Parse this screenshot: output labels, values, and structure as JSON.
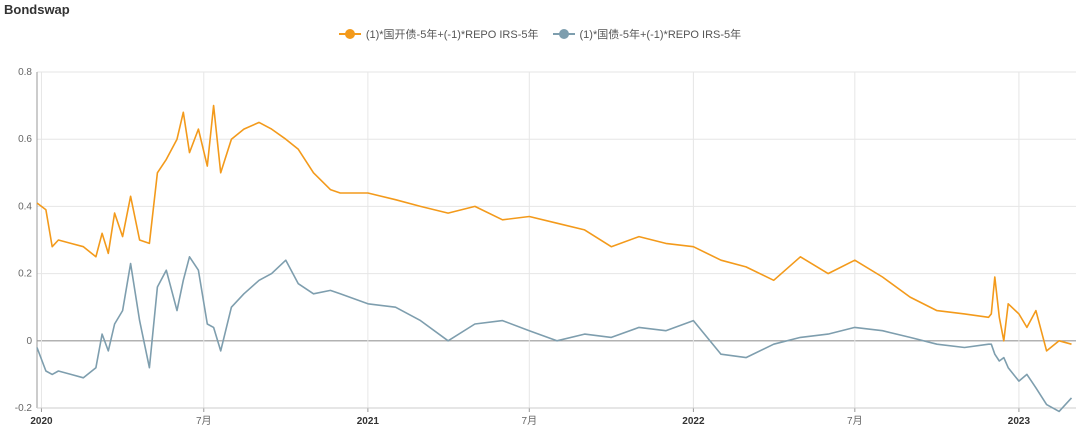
{
  "title": "Bondswap",
  "legend": [
    {
      "label": "(1)*国开债-5年+(-1)*REPO IRS-5年",
      "color": "#f39a1b"
    },
    {
      "label": "(1)*国债-5年+(-1)*REPO IRS-5年",
      "color": "#7e9eae"
    }
  ],
  "chart_data": {
    "type": "line",
    "title": "Bondswap",
    "xlabel": "",
    "ylabel": "",
    "ylim": [
      -0.2,
      0.8
    ],
    "xlim": [
      "2019-12-27",
      "2023-03-06"
    ],
    "grid": true,
    "legend_position": "top-center",
    "yticks": [
      0.8,
      0.6,
      0.4,
      0.2,
      0,
      -0.2
    ],
    "ytick_labels": [
      "0.8",
      "0.6",
      "0.4",
      "0.2",
      "0",
      "-0.2"
    ],
    "xticks": [
      {
        "date": "2020-01-01",
        "label": "2020",
        "major": true
      },
      {
        "date": "2020-07-01",
        "label": "7月",
        "major": false
      },
      {
        "date": "2021-01-01",
        "label": "2021",
        "major": true
      },
      {
        "date": "2021-07-01",
        "label": "7月",
        "major": false
      },
      {
        "date": "2022-01-01",
        "label": "2022",
        "major": true
      },
      {
        "date": "2022-07-01",
        "label": "7月",
        "major": false
      },
      {
        "date": "2023-01-01",
        "label": "2023",
        "major": true
      }
    ],
    "series": [
      {
        "name": "(1)*国开债-5年+(-1)*REPO IRS-5年",
        "color": "#f39a1b",
        "x": [
          "2019-12-27",
          "2020-01-06",
          "2020-01-13",
          "2020-01-20",
          "2020-02-03",
          "2020-02-17",
          "2020-03-02",
          "2020-03-09",
          "2020-03-16",
          "2020-03-23",
          "2020-04-01",
          "2020-04-10",
          "2020-04-20",
          "2020-05-01",
          "2020-05-10",
          "2020-05-20",
          "2020-06-01",
          "2020-06-08",
          "2020-06-15",
          "2020-06-25",
          "2020-07-05",
          "2020-07-12",
          "2020-07-20",
          "2020-08-01",
          "2020-08-15",
          "2020-09-01",
          "2020-09-15",
          "2020-10-01",
          "2020-10-15",
          "2020-11-01",
          "2020-11-20",
          "2020-12-01",
          "2021-01-01",
          "2021-02-01",
          "2021-03-01",
          "2021-04-01",
          "2021-05-01",
          "2021-06-01",
          "2021-07-01",
          "2021-08-01",
          "2021-09-01",
          "2021-10-01",
          "2021-11-01",
          "2021-12-01",
          "2022-01-01",
          "2022-02-01",
          "2022-03-01",
          "2022-04-01",
          "2022-05-01",
          "2022-06-01",
          "2022-07-01",
          "2022-08-01",
          "2022-09-01",
          "2022-10-01",
          "2022-11-01",
          "2022-11-28",
          "2022-12-01",
          "2022-12-05",
          "2022-12-10",
          "2022-12-15",
          "2022-12-20",
          "2023-01-01",
          "2023-01-10",
          "2023-01-20",
          "2023-02-01",
          "2023-02-15",
          "2023-03-01"
        ],
        "y": [
          0.41,
          0.39,
          0.28,
          0.3,
          0.29,
          0.28,
          0.25,
          0.32,
          0.26,
          0.38,
          0.31,
          0.43,
          0.3,
          0.29,
          0.5,
          0.54,
          0.6,
          0.68,
          0.56,
          0.63,
          0.52,
          0.7,
          0.5,
          0.6,
          0.63,
          0.65,
          0.63,
          0.6,
          0.57,
          0.5,
          0.45,
          0.44,
          0.44,
          0.42,
          0.4,
          0.38,
          0.4,
          0.36,
          0.37,
          0.35,
          0.33,
          0.28,
          0.31,
          0.29,
          0.28,
          0.24,
          0.22,
          0.18,
          0.25,
          0.2,
          0.24,
          0.19,
          0.13,
          0.09,
          0.08,
          0.07,
          0.08,
          0.19,
          0.07,
          0.0,
          0.11,
          0.08,
          0.04,
          0.09,
          -0.03,
          0.0,
          -0.01
        ]
      },
      {
        "name": "(1)*国债-5年+(-1)*REPO IRS-5年",
        "color": "#7e9eae",
        "x": [
          "2019-12-27",
          "2020-01-06",
          "2020-01-13",
          "2020-01-20",
          "2020-02-03",
          "2020-02-17",
          "2020-03-02",
          "2020-03-09",
          "2020-03-16",
          "2020-03-23",
          "2020-04-01",
          "2020-04-10",
          "2020-04-20",
          "2020-05-01",
          "2020-05-10",
          "2020-05-20",
          "2020-06-01",
          "2020-06-08",
          "2020-06-15",
          "2020-06-25",
          "2020-07-05",
          "2020-07-12",
          "2020-07-20",
          "2020-08-01",
          "2020-08-15",
          "2020-09-01",
          "2020-09-15",
          "2020-10-01",
          "2020-10-15",
          "2020-11-01",
          "2020-11-20",
          "2020-12-01",
          "2021-01-01",
          "2021-02-01",
          "2021-03-01",
          "2021-04-01",
          "2021-05-01",
          "2021-06-01",
          "2021-07-01",
          "2021-08-01",
          "2021-09-01",
          "2021-10-01",
          "2021-11-01",
          "2021-12-01",
          "2022-01-01",
          "2022-02-01",
          "2022-03-01",
          "2022-04-01",
          "2022-05-01",
          "2022-06-01",
          "2022-07-01",
          "2022-08-01",
          "2022-09-01",
          "2022-10-01",
          "2022-11-01",
          "2022-11-28",
          "2022-12-01",
          "2022-12-05",
          "2022-12-10",
          "2022-12-15",
          "2022-12-20",
          "2023-01-01",
          "2023-01-10",
          "2023-01-20",
          "2023-02-01",
          "2023-02-15",
          "2023-03-01"
        ],
        "y": [
          -0.02,
          -0.09,
          -0.1,
          -0.09,
          -0.1,
          -0.11,
          -0.08,
          0.02,
          -0.03,
          0.05,
          0.09,
          0.23,
          0.06,
          -0.08,
          0.16,
          0.21,
          0.09,
          0.18,
          0.25,
          0.21,
          0.05,
          0.04,
          -0.03,
          0.1,
          0.14,
          0.18,
          0.2,
          0.24,
          0.17,
          0.14,
          0.15,
          0.14,
          0.11,
          0.1,
          0.06,
          0.0,
          0.05,
          0.06,
          0.03,
          0.0,
          0.02,
          0.01,
          0.04,
          0.03,
          0.06,
          -0.04,
          -0.05,
          -0.01,
          0.01,
          0.02,
          0.04,
          0.03,
          0.01,
          -0.01,
          -0.02,
          -0.01,
          -0.01,
          -0.04,
          -0.06,
          -0.05,
          -0.08,
          -0.12,
          -0.1,
          -0.14,
          -0.19,
          -0.21,
          -0.17
        ]
      }
    ]
  }
}
